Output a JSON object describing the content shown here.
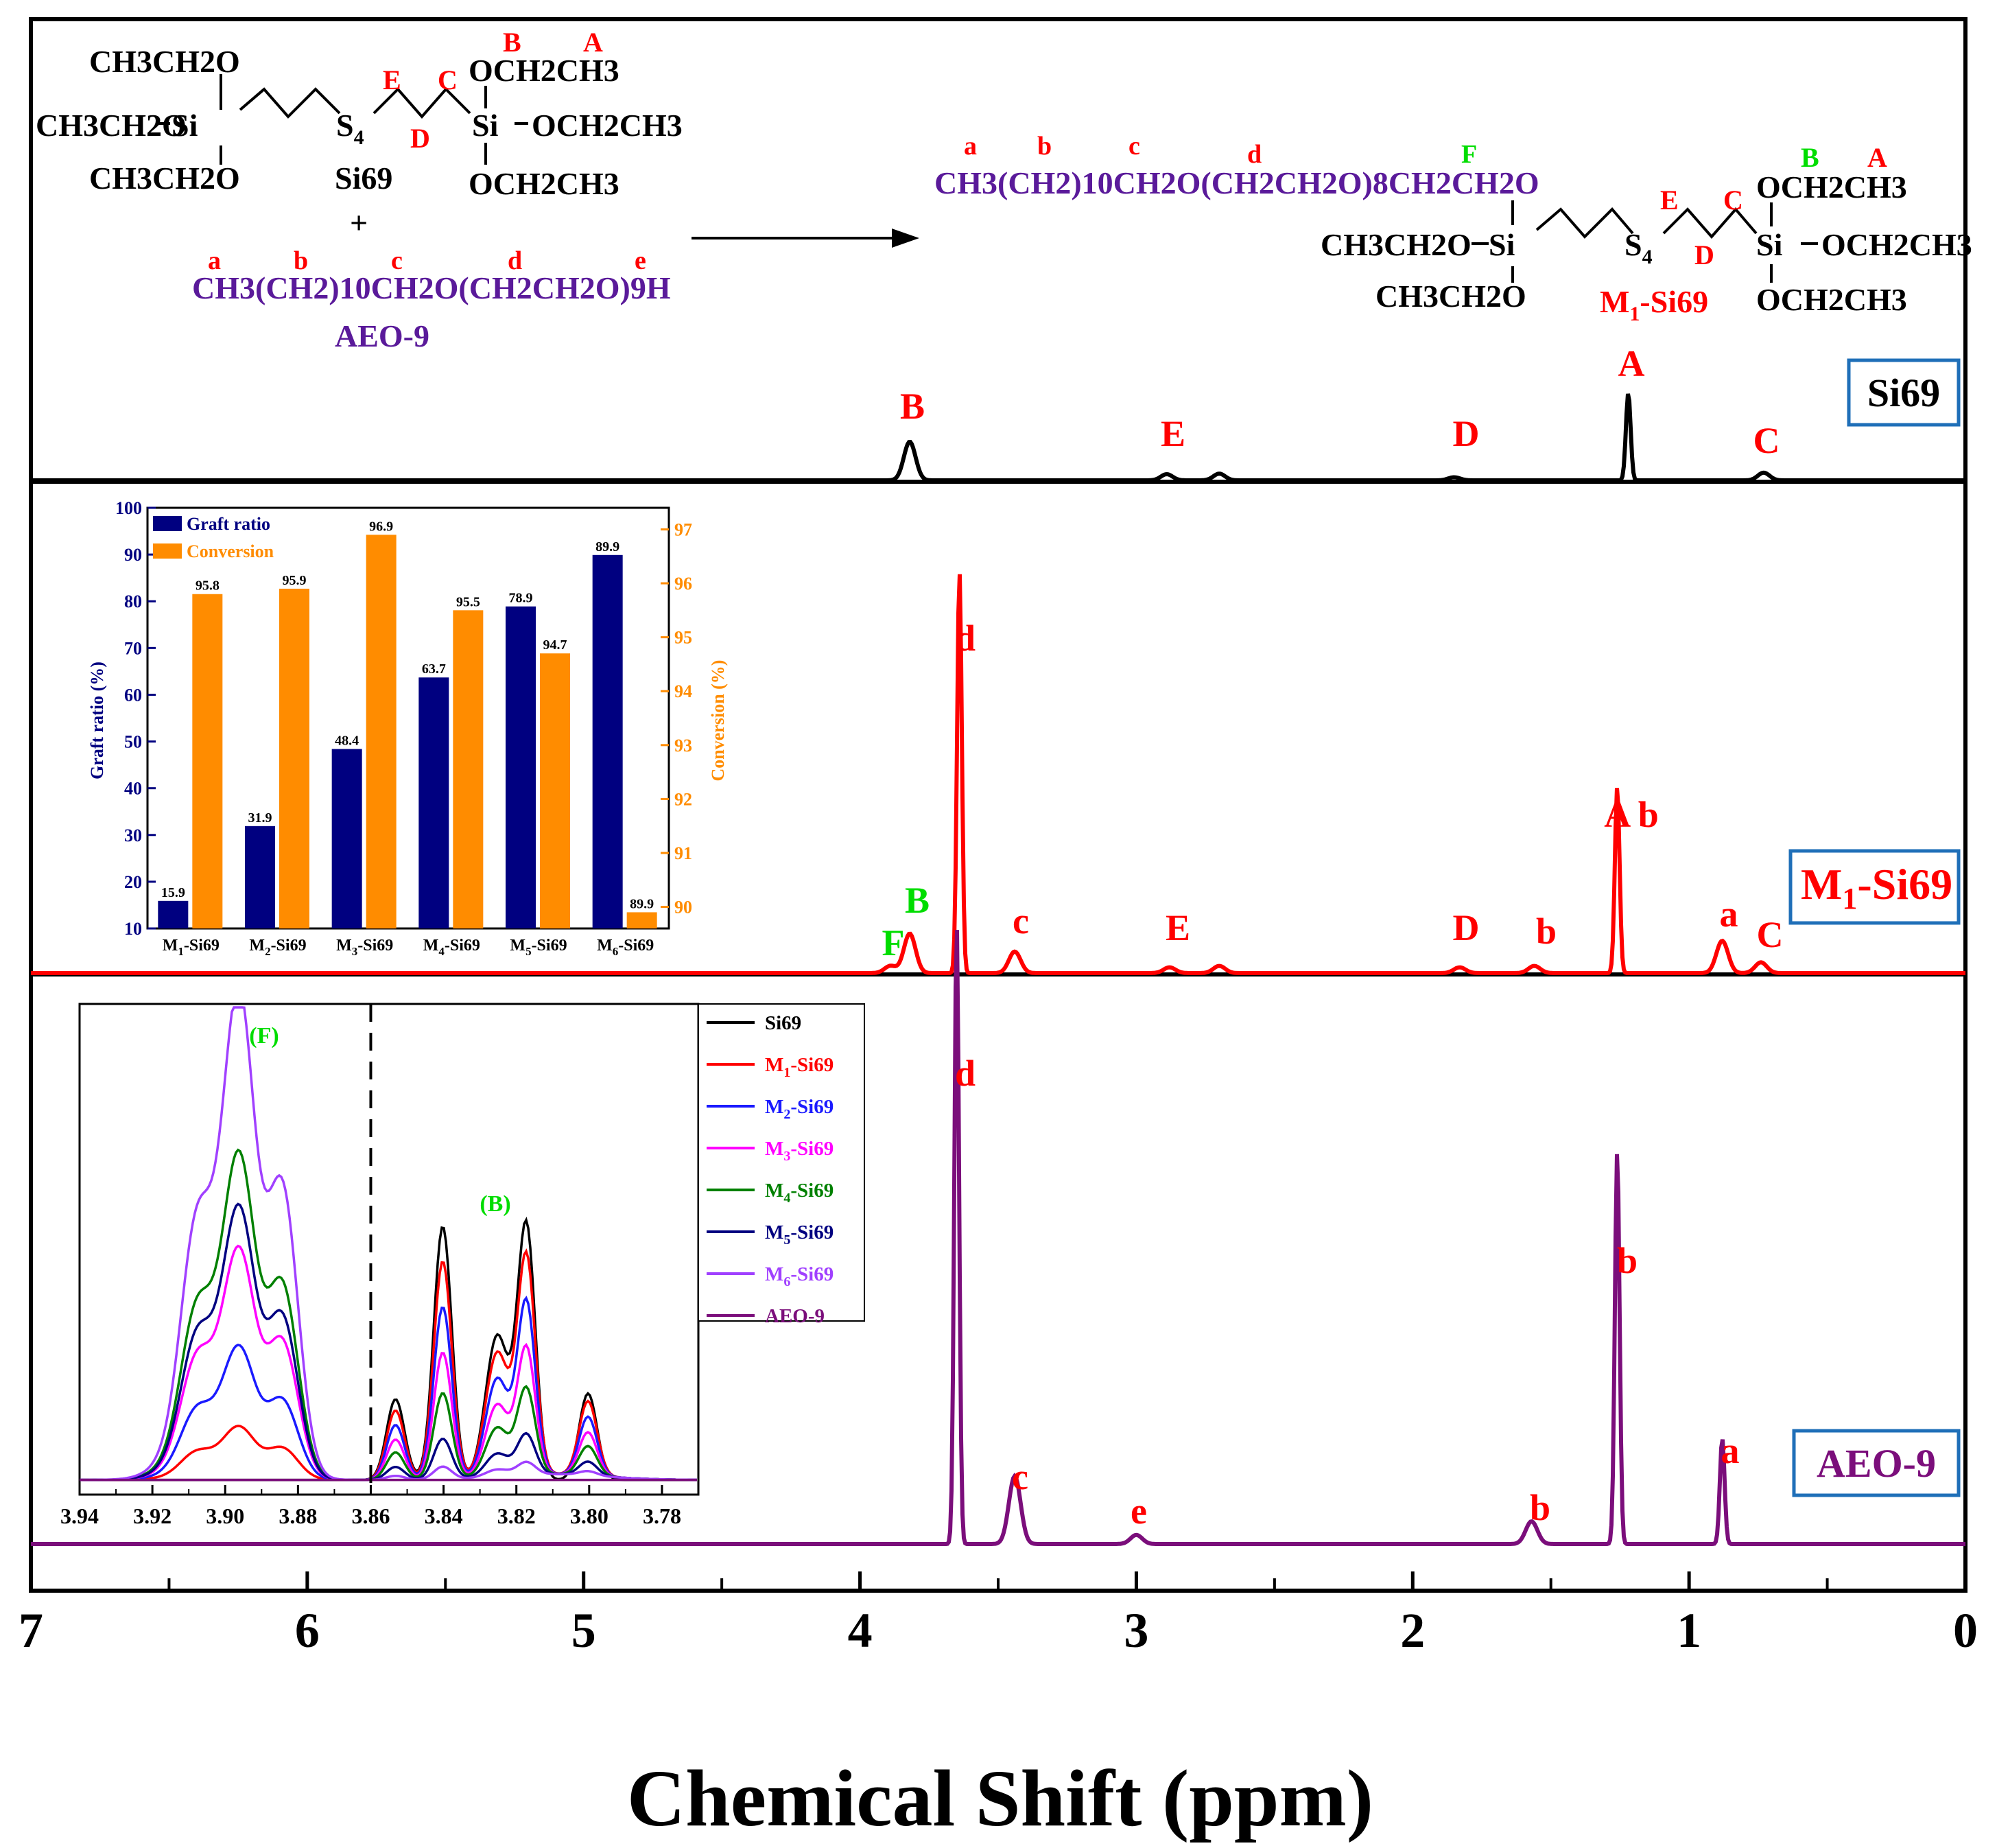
{
  "colors": {
    "black": "#000000",
    "red": "#ff0000",
    "purple": "#7b0e7b",
    "green": "#00dd00",
    "navy": "#000080",
    "orange": "#ff8c00",
    "label_purple": "#5a1a9a",
    "box_blue": "#1f6fb8"
  },
  "chart_data": [
    {
      "type": "line",
      "title": "",
      "xlabel": "Chemical Shift (ppm)",
      "xlim": [
        7,
        0
      ],
      "x_ticks": [
        "7",
        "6",
        "5",
        "4",
        "3",
        "2",
        "1",
        "0"
      ],
      "series": [
        {
          "name": "Si69",
          "label_box": "Si69",
          "peaks": [
            {
              "ppm": 3.82,
              "height": 0.75,
              "label": "B"
            },
            {
              "ppm": 2.89,
              "height": 0.12,
              "label": "E"
            },
            {
              "ppm": 2.7,
              "height": 0.13,
              "label": ""
            },
            {
              "ppm": 1.85,
              "height": 0.06,
              "label": "D"
            },
            {
              "ppm": 1.22,
              "height": 1.7,
              "label": "A"
            },
            {
              "ppm": 0.73,
              "height": 0.15,
              "label": "C"
            }
          ]
        },
        {
          "name": "M1-Si69",
          "label_box_main": "M",
          "label_box_sub": "1",
          "label_box_tail": "-Si69",
          "peaks": [
            {
              "ppm": 3.89,
              "height": 0.1,
              "label": "F"
            },
            {
              "ppm": 3.82,
              "height": 0.55,
              "label": "B"
            },
            {
              "ppm": 3.64,
              "height": 5.6,
              "label": "d"
            },
            {
              "ppm": 3.44,
              "height": 0.3,
              "label": "c"
            },
            {
              "ppm": 2.88,
              "height": 0.08,
              "label": "E"
            },
            {
              "ppm": 2.7,
              "height": 0.1,
              "label": ""
            },
            {
              "ppm": 1.83,
              "height": 0.08,
              "label": "D"
            },
            {
              "ppm": 1.56,
              "height": 0.1,
              "label": "b"
            },
            {
              "ppm": 1.26,
              "height": 2.6,
              "label": "A b"
            },
            {
              "ppm": 0.88,
              "height": 0.45,
              "label": "a"
            },
            {
              "ppm": 0.74,
              "height": 0.15,
              "label": "C"
            }
          ]
        },
        {
          "name": "AEO-9",
          "label_box": "AEO-9",
          "peaks": [
            {
              "ppm": 3.65,
              "height": 8.2,
              "label": "d"
            },
            {
              "ppm": 3.44,
              "height": 0.9,
              "label": "c"
            },
            {
              "ppm": 3.0,
              "height": 0.12,
              "label": "e"
            },
            {
              "ppm": 1.57,
              "height": 0.3,
              "label": "b"
            },
            {
              "ppm": 1.26,
              "height": 5.2,
              "label": "b"
            },
            {
              "ppm": 0.88,
              "height": 1.4,
              "label": "a"
            }
          ]
        }
      ]
    },
    {
      "type": "bar",
      "title": "Graft ratio and conversion inset",
      "categories_main": [
        "M",
        "M",
        "M",
        "M",
        "M",
        "M"
      ],
      "categories_sub": [
        "1",
        "2",
        "3",
        "4",
        "5",
        "6"
      ],
      "categories_tail": [
        "-Si69",
        "-Si69",
        "-Si69",
        "-Si69",
        "-Si69",
        "-Si69"
      ],
      "ylabel_left": "Graft ratio (%)",
      "ylabel_right": "Conversion (%)",
      "ylim_left": [
        10,
        100
      ],
      "ylim_right": [
        89.6,
        97.4
      ],
      "left_ticks": [
        "10",
        "20",
        "30",
        "40",
        "50",
        "60",
        "70",
        "80",
        "90",
        "100"
      ],
      "right_ticks": [
        "90",
        "91",
        "92",
        "93",
        "94",
        "95",
        "96",
        "97"
      ],
      "series": [
        {
          "name": "Graft ratio",
          "values": [
            15.9,
            31.9,
            48.4,
            63.7,
            78.9,
            89.9
          ],
          "labels": [
            "15.9",
            "31.9",
            "48.4",
            "63.7",
            "78.9",
            "89.9"
          ]
        },
        {
          "name": "Conversion",
          "values": [
            95.8,
            95.9,
            96.9,
            95.5,
            94.7,
            89.9
          ],
          "labels": [
            "95.8",
            "95.9",
            "96.9",
            "95.5",
            "94.7",
            "89.9"
          ]
        }
      ]
    },
    {
      "type": "line",
      "title": "Zoom inset 3.94–3.78 ppm",
      "xlim": [
        3.94,
        3.77
      ],
      "x_ticks": [
        "3.94",
        "3.92",
        "3.90",
        "3.88",
        "3.86",
        "3.84",
        "3.82",
        "3.80",
        "3.78"
      ],
      "annotation_F": "(F)",
      "annotation_B": "(B)",
      "divider_ppm": 3.86,
      "series": [
        {
          "name": "Si69",
          "leg_main": "Si69",
          "leg_sub": "",
          "leg_tail": "",
          "color": "#000000",
          "F": 0.0,
          "B": 1.0
        },
        {
          "name": "M1-Si69",
          "leg_main": "M",
          "leg_sub": "1",
          "leg_tail": "-Si69",
          "color": "#ff0000",
          "F": 0.18,
          "B": 0.86
        },
        {
          "name": "M2-Si69",
          "leg_main": "M",
          "leg_sub": "2",
          "leg_tail": "-Si69",
          "color": "#1a1aff",
          "F": 0.45,
          "B": 0.68
        },
        {
          "name": "M3-Si69",
          "leg_main": "M",
          "leg_sub": "3",
          "leg_tail": "-Si69",
          "color": "#ff00ff",
          "F": 0.78,
          "B": 0.5
        },
        {
          "name": "M4-Si69",
          "leg_main": "M",
          "leg_sub": "4",
          "leg_tail": "-Si69",
          "color": "#008000",
          "F": 1.1,
          "B": 0.34
        },
        {
          "name": "M5-Si69",
          "leg_main": "M",
          "leg_sub": "5",
          "leg_tail": "-Si69",
          "color": "#000080",
          "F": 0.92,
          "B": 0.16
        },
        {
          "name": "M6-Si69",
          "leg_main": "M",
          "leg_sub": "6",
          "leg_tail": "-Si69",
          "color": "#a040ff",
          "F": 1.65,
          "B": 0.05
        },
        {
          "name": "AEO-9",
          "leg_main": "AEO-9",
          "leg_sub": "",
          "leg_tail": "",
          "color": "#7b0e7b",
          "F": 0.0,
          "B": 0.0
        }
      ]
    }
  ],
  "scheme": {
    "si69_left": {
      "line1": "CH3CH2O",
      "line2a": "CH3CH2O",
      "line2b": "Si",
      "line3": "CH3CH2O"
    },
    "si69_s4": "S4",
    "si69_name": "Si69",
    "si69_right": {
      "line1": "OCH2CH3",
      "line2a": "Si",
      "line2b": "OCH2CH3",
      "line3": "OCH2CH3"
    },
    "plus": "+",
    "aeo_formula": "CH3(CH2)10CH2O(CH2CH2O)9H",
    "aeo_name": "AEO-9",
    "product_formula": "CH3(CH2)10CH2O(CH2CH2O)8CH2CH2O",
    "product_left": {
      "line2a": "CH3CH2O",
      "line2b": "Si",
      "line3": "CH3CH2O"
    },
    "product_s4": "S4",
    "product_right": {
      "line1": "OCH2CH3",
      "line2a": "Si",
      "line2b": "OCH2CH3",
      "line3": "OCH2CH3"
    },
    "product_name_main": "M",
    "product_name_sub": "1",
    "product_name_tail": "-Si69",
    "labels_red": {
      "a": "a",
      "b": "b",
      "c": "c",
      "d": "d",
      "e": "e",
      "A": "A",
      "B": "B",
      "C": "C",
      "D": "D",
      "E": "E"
    },
    "label_F": "F",
    "label_B_green": "B"
  }
}
